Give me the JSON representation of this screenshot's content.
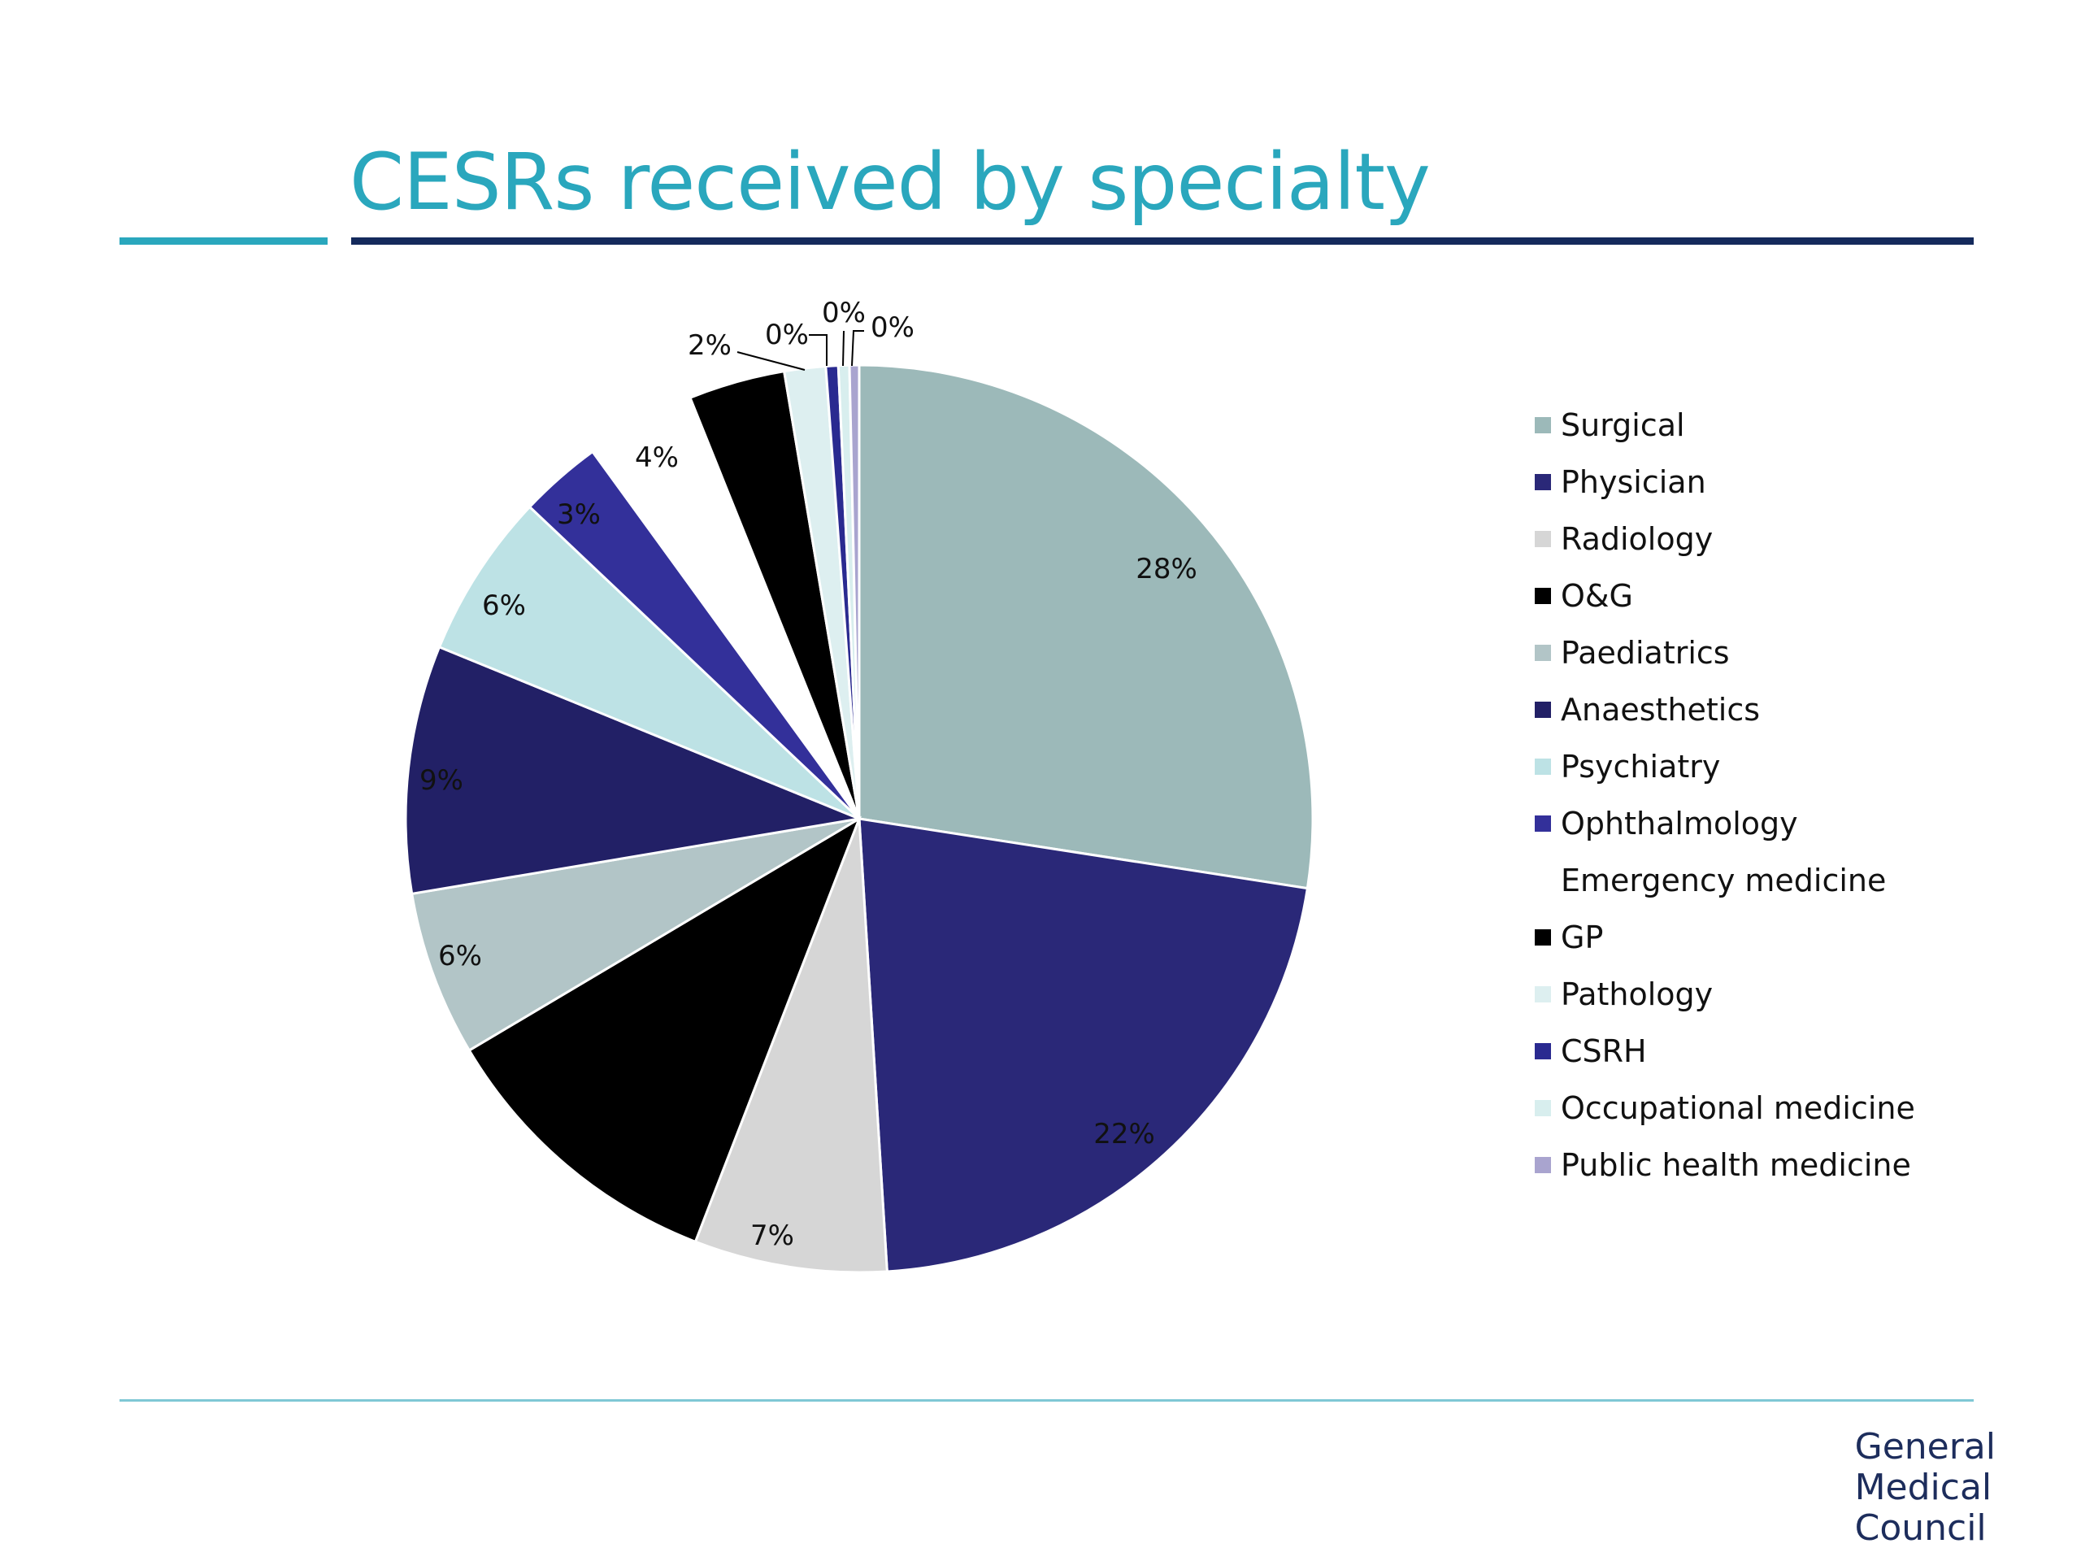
{
  "slide": {
    "title": "CESRs received by specialty",
    "logo_lines": [
      "General",
      "Medical",
      "Council"
    ]
  },
  "colors": {
    "title": "#2aa7bd",
    "accent_rule": "#2aa7bd",
    "main_rule": "#142a5c",
    "footer_rule": "#7fc8d5",
    "logo": "#1d2d5c"
  },
  "chart_data": {
    "type": "pie",
    "title": "",
    "start_angle_deg": 0,
    "direction": "clockwise",
    "slices": [
      {
        "name": "Surgical",
        "value": 28,
        "label": "28%",
        "color": "#9cb9b9"
      },
      {
        "name": "Physician",
        "value": 22,
        "label": "22%",
        "color": "#2a2878"
      },
      {
        "name": "Radiology",
        "value": 7,
        "label": "7%",
        "color": "#d6d6d6"
      },
      {
        "name": "O&G",
        "value": 10.8,
        "label": "",
        "color": "#000000"
      },
      {
        "name": "Paediatrics",
        "value": 6,
        "label": "6%",
        "color": "#b2c5c7"
      },
      {
        "name": "Anaesthetics",
        "value": 9,
        "label": "9%",
        "color": "#222066"
      },
      {
        "name": "Psychiatry",
        "value": 6,
        "label": "6%",
        "color": "#bde2e5"
      },
      {
        "name": "Ophthalmology",
        "value": 3,
        "label": "3%",
        "color": "#33309a"
      },
      {
        "name": "Emergency medicine",
        "value": 4,
        "label": "4%",
        "color": "#ffffff"
      },
      {
        "name": "GP",
        "value": 3.5,
        "label": "",
        "color": "#000000"
      },
      {
        "name": "Pathology",
        "value": 1.5,
        "label": "2%",
        "color": "#ddeff0"
      },
      {
        "name": "CSRH",
        "value": 0.45,
        "label": "0%",
        "color": "#2a2a90"
      },
      {
        "name": "Occupational medicine",
        "value": 0.4,
        "label": "0%",
        "color": "#d8eeee"
      },
      {
        "name": "Public health medicine",
        "value": 0.35,
        "label": "0%",
        "color": "#a9a4cf"
      }
    ],
    "legend_position": "right"
  }
}
